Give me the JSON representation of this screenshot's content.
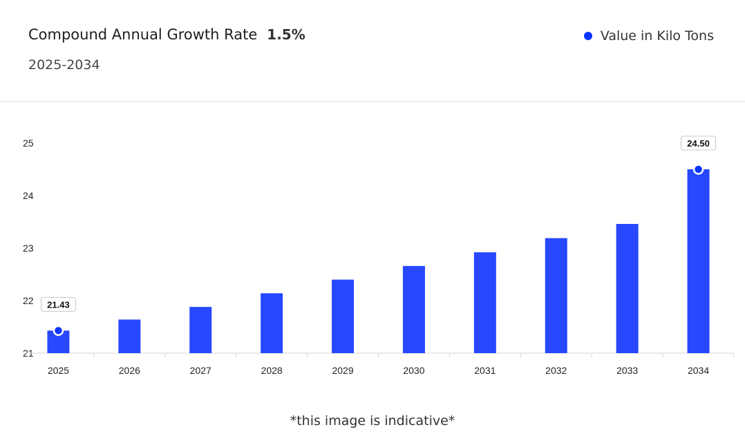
{
  "header": {
    "title": "Compound Annual Growth Rate",
    "cagr": "1.5%",
    "period": "2025-2034",
    "legend_label": "Value in Kilo Tons"
  },
  "footnote": "*this image is indicative*",
  "colors": {
    "bar": "#2748ff",
    "accent": "#0a35ff"
  },
  "chart_data": {
    "type": "bar",
    "categories": [
      "2025",
      "2026",
      "2027",
      "2028",
      "2029",
      "2030",
      "2031",
      "2032",
      "2033",
      "2034"
    ],
    "series": [
      {
        "name": "Value in Kilo Tons",
        "values": [
          21.43,
          21.64,
          21.88,
          22.14,
          22.4,
          22.66,
          22.92,
          23.19,
          23.46,
          24.5
        ]
      }
    ],
    "y_ticks": [
      "21",
      "22",
      "23",
      "24",
      "25"
    ],
    "ylim": [
      21,
      25
    ],
    "labeled_points": [
      {
        "index": 0,
        "label": "21.43"
      },
      {
        "index": 9,
        "label": "24.50"
      }
    ],
    "grid": false,
    "legend_position": "top-right"
  }
}
